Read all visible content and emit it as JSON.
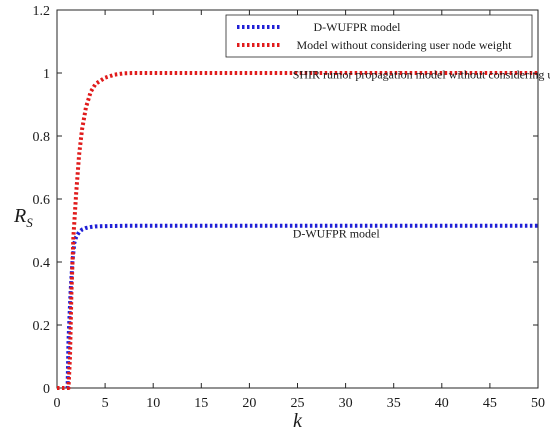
{
  "chart_data": {
    "type": "line",
    "xlabel": "k",
    "ylabel": {
      "main": "R",
      "sub": "S"
    },
    "xlim": [
      0,
      50
    ],
    "ylim": [
      0,
      1.2
    ],
    "x_ticks": [
      "0",
      "5",
      "10",
      "15",
      "20",
      "25",
      "30",
      "35",
      "40",
      "45",
      "50"
    ],
    "y_ticks": [
      "0",
      "0.2",
      "0.4",
      "0.6",
      "0.8",
      "1",
      "1.2"
    ],
    "grid": false,
    "legend": {
      "placement": "top-right"
    },
    "series": [
      {
        "name": "D-WUFPR model",
        "color": "#1f1fd6",
        "style": "dotted",
        "x": [
          0,
          1.1,
          1.2,
          1.4,
          1.6,
          1.8,
          2,
          2.3,
          2.6,
          3,
          3.5,
          4,
          5,
          7,
          10,
          20,
          30,
          40,
          50
        ],
        "y": [
          0,
          0,
          0.15,
          0.3,
          0.4,
          0.46,
          0.48,
          0.495,
          0.503,
          0.508,
          0.511,
          0.513,
          0.514,
          0.515,
          0.515,
          0.515,
          0.515,
          0.515,
          0.515
        ]
      },
      {
        "name": "Model without considering user node weight",
        "color": "#e01b1b",
        "style": "dotted",
        "x": [
          0,
          1.2,
          1.35,
          1.5,
          1.7,
          2,
          2.3,
          2.6,
          3,
          3.5,
          4,
          5,
          6,
          7,
          8,
          10,
          20,
          30,
          40,
          50
        ],
        "y": [
          0,
          0,
          0.1,
          0.3,
          0.48,
          0.62,
          0.74,
          0.82,
          0.89,
          0.94,
          0.965,
          0.985,
          0.995,
          0.999,
          1.0,
          1.0,
          1.0,
          1.0,
          1.0,
          1.0
        ]
      }
    ],
    "annotations": [
      {
        "text": "SHIR rumor propagation model without considering user node weight",
        "x": 24.5,
        "y": 0.982
      },
      {
        "text": "D-WUFPR model",
        "x": 24.5,
        "y": 0.478
      }
    ]
  }
}
